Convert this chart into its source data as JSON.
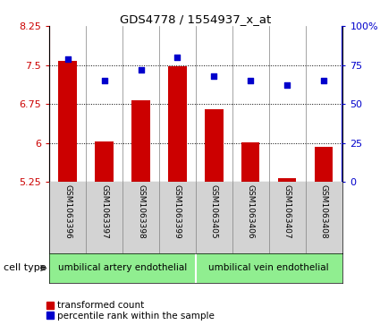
{
  "title": "GDS4778 / 1554937_x_at",
  "samples": [
    "GSM1063396",
    "GSM1063397",
    "GSM1063398",
    "GSM1063399",
    "GSM1063405",
    "GSM1063406",
    "GSM1063407",
    "GSM1063408"
  ],
  "transformed_count": [
    7.58,
    6.03,
    6.82,
    7.48,
    6.65,
    6.02,
    5.32,
    5.92
  ],
  "percentile_rank": [
    79,
    65,
    72,
    80,
    68,
    65,
    62,
    65
  ],
  "ylim_left": [
    5.25,
    8.25
  ],
  "ylim_right": [
    0,
    100
  ],
  "yticks_left": [
    5.25,
    6.0,
    6.75,
    7.5,
    8.25
  ],
  "yticks_right": [
    0,
    25,
    50,
    75,
    100
  ],
  "ytick_labels_left": [
    "5.25",
    "6",
    "6.75",
    "7.5",
    "8.25"
  ],
  "ytick_labels_right": [
    "0",
    "25",
    "50",
    "75",
    "100%"
  ],
  "bar_color": "#cc0000",
  "dot_color": "#0000cc",
  "group1_label": "umbilical artery endothelial",
  "group2_label": "umbilical vein endothelial",
  "group1_indices": [
    0,
    1,
    2,
    3
  ],
  "group2_indices": [
    4,
    5,
    6,
    7
  ],
  "group_bg_color": "#90ee90",
  "sample_bg_color": "#d3d3d3",
  "cell_type_label": "cell type",
  "legend_bar_label": "transformed count",
  "legend_dot_label": "percentile rank within the sample",
  "grid_color": "black",
  "ax_background": "white"
}
